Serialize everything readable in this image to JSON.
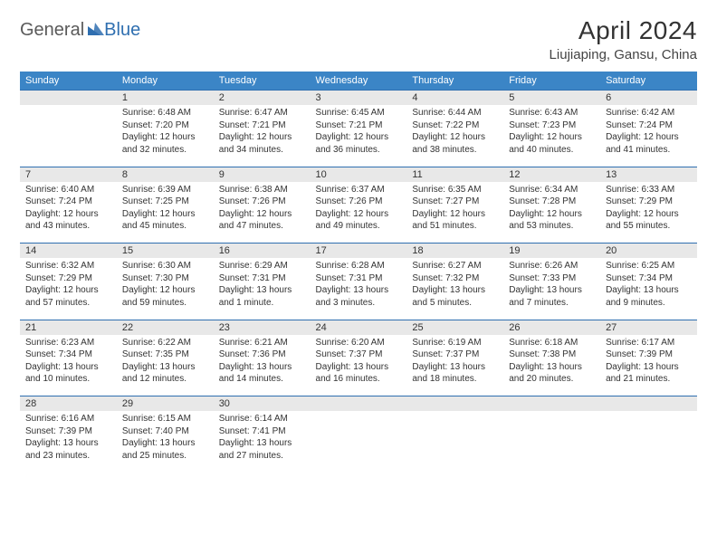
{
  "brand": {
    "part1": "General",
    "part2": "Blue"
  },
  "title": "April 2024",
  "location": "Liujiaping, Gansu, China",
  "colors": {
    "header_bg": "#3b85c6",
    "header_text": "#ffffff",
    "daynum_bg": "#e8e8e8",
    "rule": "#2f6fb0",
    "body_text": "#333333"
  },
  "weekdays": [
    "Sunday",
    "Monday",
    "Tuesday",
    "Wednesday",
    "Thursday",
    "Friday",
    "Saturday"
  ],
  "weeks": [
    {
      "days": [
        null,
        {
          "n": "1",
          "sunrise": "Sunrise: 6:48 AM",
          "sunset": "Sunset: 7:20 PM",
          "dl1": "Daylight: 12 hours",
          "dl2": "and 32 minutes."
        },
        {
          "n": "2",
          "sunrise": "Sunrise: 6:47 AM",
          "sunset": "Sunset: 7:21 PM",
          "dl1": "Daylight: 12 hours",
          "dl2": "and 34 minutes."
        },
        {
          "n": "3",
          "sunrise": "Sunrise: 6:45 AM",
          "sunset": "Sunset: 7:21 PM",
          "dl1": "Daylight: 12 hours",
          "dl2": "and 36 minutes."
        },
        {
          "n": "4",
          "sunrise": "Sunrise: 6:44 AM",
          "sunset": "Sunset: 7:22 PM",
          "dl1": "Daylight: 12 hours",
          "dl2": "and 38 minutes."
        },
        {
          "n": "5",
          "sunrise": "Sunrise: 6:43 AM",
          "sunset": "Sunset: 7:23 PM",
          "dl1": "Daylight: 12 hours",
          "dl2": "and 40 minutes."
        },
        {
          "n": "6",
          "sunrise": "Sunrise: 6:42 AM",
          "sunset": "Sunset: 7:24 PM",
          "dl1": "Daylight: 12 hours",
          "dl2": "and 41 minutes."
        }
      ]
    },
    {
      "days": [
        {
          "n": "7",
          "sunrise": "Sunrise: 6:40 AM",
          "sunset": "Sunset: 7:24 PM",
          "dl1": "Daylight: 12 hours",
          "dl2": "and 43 minutes."
        },
        {
          "n": "8",
          "sunrise": "Sunrise: 6:39 AM",
          "sunset": "Sunset: 7:25 PM",
          "dl1": "Daylight: 12 hours",
          "dl2": "and 45 minutes."
        },
        {
          "n": "9",
          "sunrise": "Sunrise: 6:38 AM",
          "sunset": "Sunset: 7:26 PM",
          "dl1": "Daylight: 12 hours",
          "dl2": "and 47 minutes."
        },
        {
          "n": "10",
          "sunrise": "Sunrise: 6:37 AM",
          "sunset": "Sunset: 7:26 PM",
          "dl1": "Daylight: 12 hours",
          "dl2": "and 49 minutes."
        },
        {
          "n": "11",
          "sunrise": "Sunrise: 6:35 AM",
          "sunset": "Sunset: 7:27 PM",
          "dl1": "Daylight: 12 hours",
          "dl2": "and 51 minutes."
        },
        {
          "n": "12",
          "sunrise": "Sunrise: 6:34 AM",
          "sunset": "Sunset: 7:28 PM",
          "dl1": "Daylight: 12 hours",
          "dl2": "and 53 minutes."
        },
        {
          "n": "13",
          "sunrise": "Sunrise: 6:33 AM",
          "sunset": "Sunset: 7:29 PM",
          "dl1": "Daylight: 12 hours",
          "dl2": "and 55 minutes."
        }
      ]
    },
    {
      "days": [
        {
          "n": "14",
          "sunrise": "Sunrise: 6:32 AM",
          "sunset": "Sunset: 7:29 PM",
          "dl1": "Daylight: 12 hours",
          "dl2": "and 57 minutes."
        },
        {
          "n": "15",
          "sunrise": "Sunrise: 6:30 AM",
          "sunset": "Sunset: 7:30 PM",
          "dl1": "Daylight: 12 hours",
          "dl2": "and 59 minutes."
        },
        {
          "n": "16",
          "sunrise": "Sunrise: 6:29 AM",
          "sunset": "Sunset: 7:31 PM",
          "dl1": "Daylight: 13 hours",
          "dl2": "and 1 minute."
        },
        {
          "n": "17",
          "sunrise": "Sunrise: 6:28 AM",
          "sunset": "Sunset: 7:31 PM",
          "dl1": "Daylight: 13 hours",
          "dl2": "and 3 minutes."
        },
        {
          "n": "18",
          "sunrise": "Sunrise: 6:27 AM",
          "sunset": "Sunset: 7:32 PM",
          "dl1": "Daylight: 13 hours",
          "dl2": "and 5 minutes."
        },
        {
          "n": "19",
          "sunrise": "Sunrise: 6:26 AM",
          "sunset": "Sunset: 7:33 PM",
          "dl1": "Daylight: 13 hours",
          "dl2": "and 7 minutes."
        },
        {
          "n": "20",
          "sunrise": "Sunrise: 6:25 AM",
          "sunset": "Sunset: 7:34 PM",
          "dl1": "Daylight: 13 hours",
          "dl2": "and 9 minutes."
        }
      ]
    },
    {
      "days": [
        {
          "n": "21",
          "sunrise": "Sunrise: 6:23 AM",
          "sunset": "Sunset: 7:34 PM",
          "dl1": "Daylight: 13 hours",
          "dl2": "and 10 minutes."
        },
        {
          "n": "22",
          "sunrise": "Sunrise: 6:22 AM",
          "sunset": "Sunset: 7:35 PM",
          "dl1": "Daylight: 13 hours",
          "dl2": "and 12 minutes."
        },
        {
          "n": "23",
          "sunrise": "Sunrise: 6:21 AM",
          "sunset": "Sunset: 7:36 PM",
          "dl1": "Daylight: 13 hours",
          "dl2": "and 14 minutes."
        },
        {
          "n": "24",
          "sunrise": "Sunrise: 6:20 AM",
          "sunset": "Sunset: 7:37 PM",
          "dl1": "Daylight: 13 hours",
          "dl2": "and 16 minutes."
        },
        {
          "n": "25",
          "sunrise": "Sunrise: 6:19 AM",
          "sunset": "Sunset: 7:37 PM",
          "dl1": "Daylight: 13 hours",
          "dl2": "and 18 minutes."
        },
        {
          "n": "26",
          "sunrise": "Sunrise: 6:18 AM",
          "sunset": "Sunset: 7:38 PM",
          "dl1": "Daylight: 13 hours",
          "dl2": "and 20 minutes."
        },
        {
          "n": "27",
          "sunrise": "Sunrise: 6:17 AM",
          "sunset": "Sunset: 7:39 PM",
          "dl1": "Daylight: 13 hours",
          "dl2": "and 21 minutes."
        }
      ]
    },
    {
      "days": [
        {
          "n": "28",
          "sunrise": "Sunrise: 6:16 AM",
          "sunset": "Sunset: 7:39 PM",
          "dl1": "Daylight: 13 hours",
          "dl2": "and 23 minutes."
        },
        {
          "n": "29",
          "sunrise": "Sunrise: 6:15 AM",
          "sunset": "Sunset: 7:40 PM",
          "dl1": "Daylight: 13 hours",
          "dl2": "and 25 minutes."
        },
        {
          "n": "30",
          "sunrise": "Sunrise: 6:14 AM",
          "sunset": "Sunset: 7:41 PM",
          "dl1": "Daylight: 13 hours",
          "dl2": "and 27 minutes."
        },
        null,
        null,
        null,
        null
      ]
    }
  ]
}
